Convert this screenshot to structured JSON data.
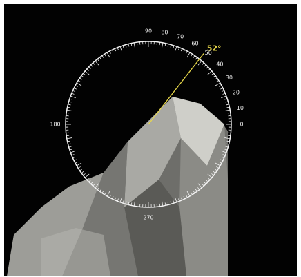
{
  "protractor": {
    "labels": [
      90,
      80,
      70,
      60,
      50,
      40,
      30,
      20,
      10,
      0,
      180,
      270
    ],
    "measurement": {
      "value": 52,
      "label": "52°"
    }
  }
}
